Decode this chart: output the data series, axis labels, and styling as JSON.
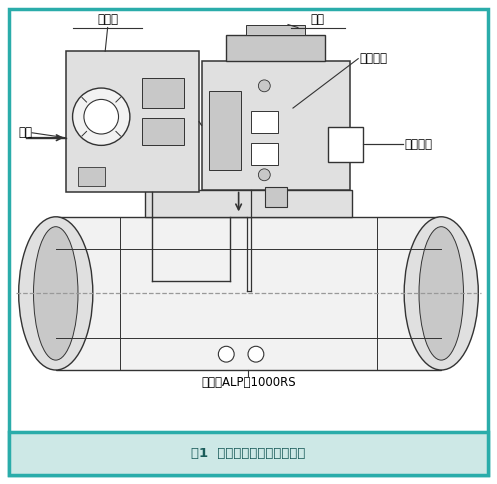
{
  "bg_color": "#ffffff",
  "border_color": "#2aacaa",
  "title_bg": "#cde8e6",
  "title_text": "图1  改造前定位器安装示意图",
  "title_color": "#1a5c5a",
  "fig_width": 4.97,
  "fig_height": 4.84,
  "dpi": 100,
  "labels": {
    "dingweiqi": "定位器",
    "zhijia": "支架",
    "yiduanlie": "易断裂处",
    "qiyuan": "气源",
    "songdong": "松动部位",
    "jiaochengALP": "角行程ALP－1000RS"
  },
  "line_color": "#333333",
  "body_fill": "#f2f2f2",
  "part_fill": "#e0e0e0",
  "dark_fill": "#c8c8c8"
}
